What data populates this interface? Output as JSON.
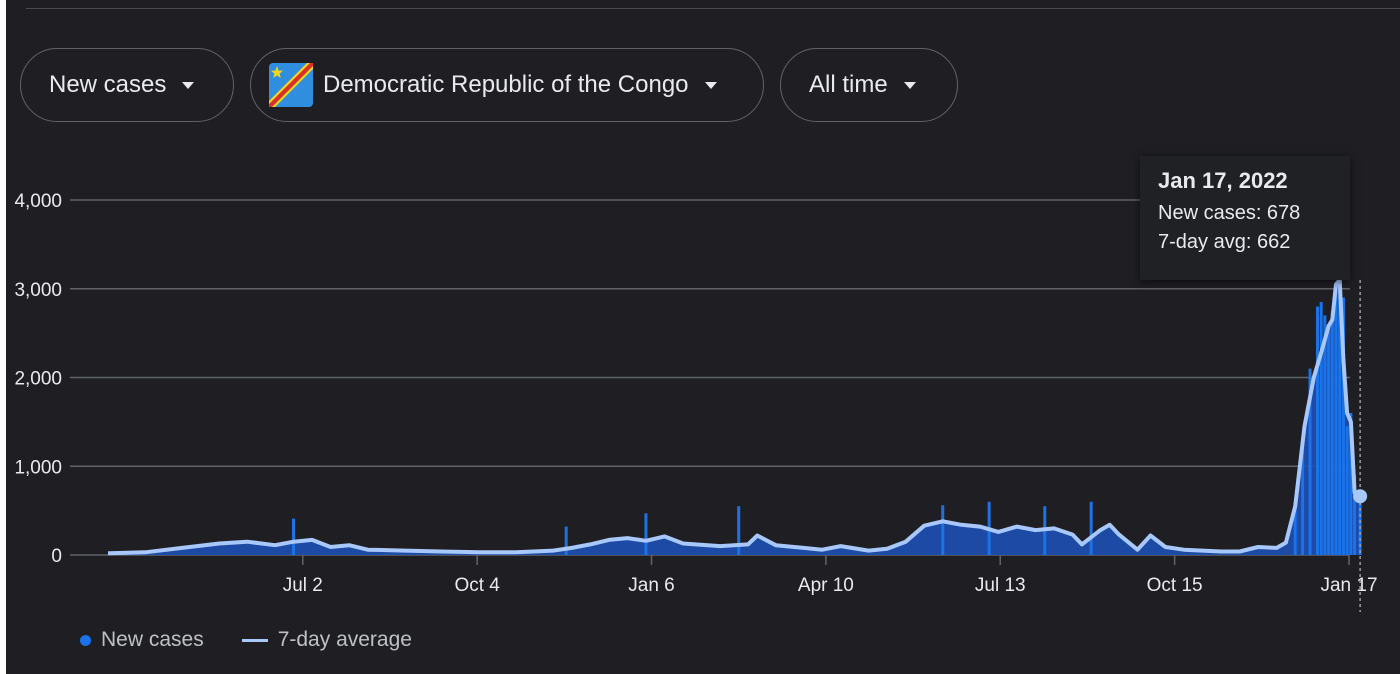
{
  "filters": {
    "metric": "New cases",
    "country": "Democratic Republic of the Congo",
    "range": "All time"
  },
  "tooltip": {
    "date": "Jan 17, 2022",
    "new_cases_text": "New cases: 678",
    "avg_text": "7-day avg: 662"
  },
  "legend": {
    "new_cases": "New cases",
    "avg": "7-day average"
  },
  "colors": {
    "background": "#1f1f23",
    "bars": "#1a73e8",
    "bars_fill": "#1d4fb3",
    "average_line": "#a8c7fa",
    "grid": "#5f6368",
    "text": "#e8eaed",
    "flag_blue": "#2f8fde",
    "flag_red": "#d8302c",
    "flag_yellow": "#f7d618"
  },
  "chart_data": {
    "type": "bar",
    "title": "",
    "xlabel": "",
    "ylabel": "",
    "ylim": [
      0,
      4000
    ],
    "yticks": [
      "0",
      "1,000",
      "2,000",
      "3,000",
      "4,000"
    ],
    "yticks_values": [
      0,
      1000,
      2000,
      3000,
      4000
    ],
    "xticks": [
      "Jul 2",
      "Oct 4",
      "Jan 6",
      "Apr 10",
      "Jul 13",
      "Oct 15",
      "Jan 17"
    ],
    "xticks_days": [
      105,
      199,
      293,
      387,
      481,
      575,
      669
    ],
    "xlim_days": [
      0,
      669
    ],
    "x_unit": "days since Mar 19, 2020",
    "series": [
      {
        "name": "7-day average",
        "points": [
          [
            0,
            20
          ],
          [
            20,
            30
          ],
          [
            40,
            80
          ],
          [
            60,
            130
          ],
          [
            75,
            150
          ],
          [
            90,
            110
          ],
          [
            100,
            150
          ],
          [
            110,
            170
          ],
          [
            120,
            90
          ],
          [
            130,
            110
          ],
          [
            140,
            60
          ],
          [
            160,
            50
          ],
          [
            180,
            40
          ],
          [
            200,
            30
          ],
          [
            220,
            30
          ],
          [
            240,
            50
          ],
          [
            250,
            80
          ],
          [
            260,
            120
          ],
          [
            270,
            170
          ],
          [
            280,
            190
          ],
          [
            290,
            160
          ],
          [
            300,
            210
          ],
          [
            310,
            130
          ],
          [
            330,
            100
          ],
          [
            345,
            120
          ],
          [
            350,
            220
          ],
          [
            360,
            110
          ],
          [
            375,
            80
          ],
          [
            385,
            60
          ],
          [
            395,
            100
          ],
          [
            410,
            50
          ],
          [
            420,
            70
          ],
          [
            430,
            150
          ],
          [
            440,
            330
          ],
          [
            450,
            380
          ],
          [
            460,
            340
          ],
          [
            470,
            320
          ],
          [
            480,
            260
          ],
          [
            490,
            320
          ],
          [
            500,
            280
          ],
          [
            510,
            300
          ],
          [
            520,
            230
          ],
          [
            525,
            120
          ],
          [
            535,
            280
          ],
          [
            540,
            340
          ],
          [
            545,
            230
          ],
          [
            555,
            60
          ],
          [
            562,
            220
          ],
          [
            570,
            90
          ],
          [
            580,
            60
          ],
          [
            590,
            50
          ],
          [
            600,
            40
          ],
          [
            610,
            40
          ],
          [
            620,
            90
          ],
          [
            630,
            80
          ],
          [
            635,
            140
          ],
          [
            640,
            550
          ],
          [
            645,
            1450
          ],
          [
            650,
            2000
          ],
          [
            655,
            2350
          ],
          [
            658,
            2580
          ],
          [
            660,
            2650
          ],
          [
            662,
            3050
          ],
          [
            664,
            3100
          ],
          [
            666,
            2200
          ],
          [
            668,
            1600
          ],
          [
            670,
            1500
          ],
          [
            672,
            700
          ],
          [
            675,
            662
          ]
        ]
      },
      {
        "name": "New cases",
        "bars": [
          [
            100,
            410
          ],
          [
            247,
            320
          ],
          [
            290,
            470
          ],
          [
            340,
            550
          ],
          [
            450,
            560
          ],
          [
            475,
            600
          ],
          [
            505,
            550
          ],
          [
            530,
            600
          ],
          [
            640,
            600
          ],
          [
            644,
            1200
          ],
          [
            648,
            2100
          ],
          [
            652,
            2800
          ],
          [
            654,
            2850
          ],
          [
            656,
            2700
          ],
          [
            658,
            2600
          ],
          [
            660,
            2750
          ],
          [
            662,
            3050
          ],
          [
            664,
            3100
          ],
          [
            666,
            2900
          ],
          [
            668,
            1450
          ],
          [
            670,
            1600
          ],
          [
            672,
            900
          ],
          [
            675,
            678
          ]
        ]
      }
    ]
  }
}
